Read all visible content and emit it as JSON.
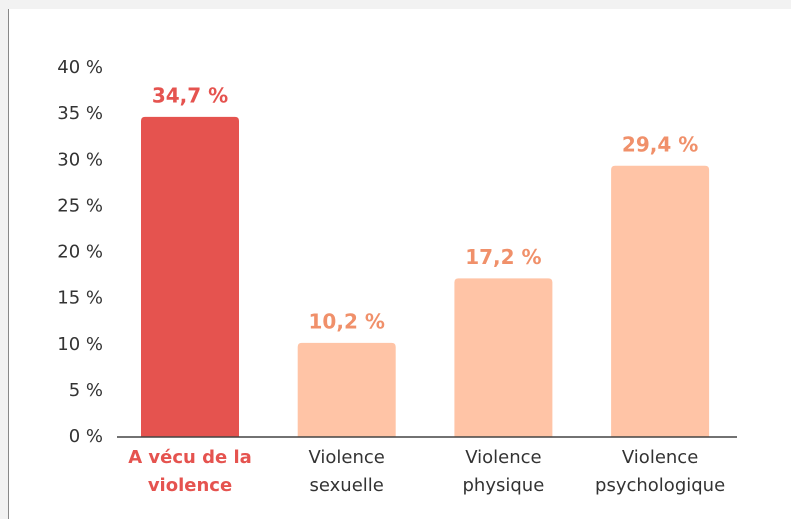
{
  "chart_data": {
    "type": "bar",
    "categories": [
      [
        "A vécu de la",
        "violence"
      ],
      [
        "Violence",
        "sexuelle"
      ],
      [
        "Violence",
        "physique"
      ],
      [
        "Violence",
        "psychologique"
      ]
    ],
    "values": [
      34.7,
      10.2,
      17.2,
      29.4
    ],
    "value_labels": [
      "34,7 %",
      "10,2 %",
      "17,2 %",
      "29,4 %"
    ],
    "colors": [
      "#e5534f",
      "#ffc4a6",
      "#ffc4a6",
      "#ffc4a6"
    ],
    "label_colors": [
      "#e5534f",
      "#f0906a",
      "#f0906a",
      "#f0906a"
    ],
    "highlight_index": 0,
    "ylim": [
      0,
      40
    ],
    "yticks": [
      {
        "value": 0,
        "label": "0 %"
      },
      {
        "value": 5,
        "label": "5 %"
      },
      {
        "value": 10,
        "label": "10 %"
      },
      {
        "value": 15,
        "label": "15 %"
      },
      {
        "value": 20,
        "label": "20 %"
      },
      {
        "value": 25,
        "label": "25 %"
      },
      {
        "value": 30,
        "label": "30 %"
      },
      {
        "value": 35,
        "label": "35 %"
      },
      {
        "value": 40,
        "label": "40 %"
      }
    ],
    "grid": false
  }
}
